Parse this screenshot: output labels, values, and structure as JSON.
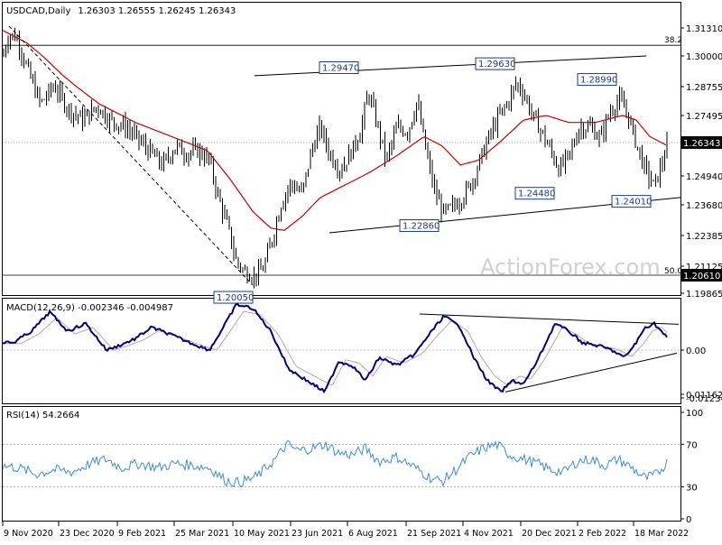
{
  "header": {
    "symbol": "USDCAD,Daily",
    "ohlc": "1.26303 1.26555 1.26245 1.26343"
  },
  "watermark": "ActionForex.com",
  "colors": {
    "candle": "#000000",
    "ma": "#cc0000",
    "macd_line": "#00007f",
    "macd_signal": "#c8a0b0",
    "rsi_line": "#3a8fd6",
    "trendline": "#000000"
  },
  "price_tick_labels": [
    "1.31310",
    "1.30000",
    "1.28755",
    "1.27495",
    "1.26343",
    "1.24940",
    "1.23680",
    "1.22385",
    "1.21125",
    "1.20610",
    "1.19865"
  ],
  "macd_tick_labels": [
    "0.011629",
    "0.00",
    "-0.012348"
  ],
  "rsi_tick_labels": [
    "100",
    "70",
    "30",
    "0"
  ],
  "x_tick_labels": [
    "9 Nov 2020",
    "23 Dec 2020",
    "9 Feb 2021",
    "25 Mar 2021",
    "10 May 2021",
    "23 Jun 2021",
    "6 Aug 2021",
    "21 Sep 2021",
    "4 Nov 2021",
    "20 Dec 2021",
    "2 Feb 2022",
    "18 Mar 2022"
  ],
  "fib_labels": {
    "upper": "38.2",
    "lower": "50.0"
  },
  "annotations": {
    "peak_a": "1.29470",
    "peak_b": "1.29630",
    "peak_c": "1.28990",
    "low_a": "1.20050",
    "low_b": "1.22860",
    "low_c": "1.24480",
    "low_d": "1.24010"
  },
  "current_price": "1.26343",
  "macd_header": "MACD(12,26,9) -0.002346 -0.004987",
  "rsi_header": "RSI(14) 54.2664",
  "chart_data": [
    {
      "type": "line",
      "panel": "price",
      "title": "USDCAD,Daily",
      "x": [
        "9 Nov 2020",
        "23 Dec 2020",
        "9 Feb 2021",
        "25 Mar 2021",
        "10 May 2021",
        "23 Jun 2021",
        "6 Aug 2021",
        "21 Sep 2021",
        "4 Nov 2021",
        "20 Dec 2021",
        "2 Feb 2022",
        "18 Mar 2022"
      ],
      "series": [
        {
          "name": "",
          "values": [
            1.305,
            1.28,
            1.27,
            1.255,
            1.212,
            1.235,
            1.25,
            1.275,
            1.26,
            1.285,
            1.27,
            1.25
          ]
        },
        {
          "name": "",
          "values": [
            1.31,
            1.29,
            1.275,
            1.26,
            1.23,
            1.225,
            1.24,
            1.265,
            1.255,
            1.275,
            1.27,
            1.262
          ]
        }
      ],
      "key_levels": {
        "peaks": [
          1.2947,
          1.2963,
          1.2899
        ],
        "lows": [
          1.2005,
          1.2286,
          1.2448,
          1.2401
        ],
        "current": 1.26343,
        "fib_38_2": 1.305,
        "fib_50_0": 1.2061
      },
      "ylim": [
        1.195,
        1.32
      ],
      "grid": false
    },
    {
      "type": "line",
      "panel": "macd",
      "title": "MACD(12,26,9) -0.002346 -0.004987",
      "series": [
        {
          "name": "",
          "values": [
            -0.004,
            -0.008,
            0.0,
            -0.004,
            -0.012,
            0.011,
            0.005,
            -0.008,
            0.011,
            -0.006,
            0.002,
            -0.002
          ]
        }
      ],
      "ylim": [
        -0.0135,
        0.0125
      ]
    },
    {
      "type": "line",
      "panel": "rsi",
      "title": "RSI(14) 54.2664",
      "series": [
        {
          "name": "",
          "values": [
            48,
            40,
            52,
            50,
            32,
            68,
            62,
            35,
            68,
            52,
            60,
            54
          ]
        }
      ],
      "ylim": [
        0,
        100
      ],
      "levels": [
        70,
        30
      ]
    }
  ]
}
